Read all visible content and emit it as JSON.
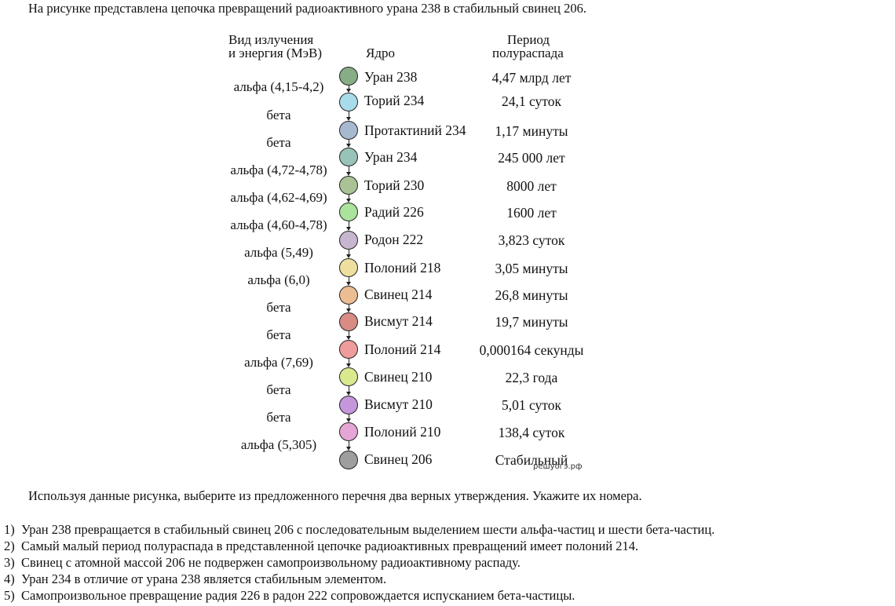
{
  "intro": "На рисунке представлена цепочка превращений радиоактивного урана 238 в стабильный свинец 206.",
  "headers": {
    "radiation_line1": "Вид излучения",
    "radiation_line2": "и энергия (МэВ)",
    "nucleus": "Ядро",
    "halflife_line1": "Период",
    "halflife_line2": "полураспада"
  },
  "decays": [
    "альфа (4,15-4,2)",
    "бета",
    "бета",
    "альфа (4,72-4,78)",
    "альфа (4,62-4,69)",
    "альфа (4,60-4,78)",
    "альфа (5,49)",
    "альфа (6,0)",
    "бета",
    "бета",
    "альфа (7,69)",
    "бета",
    "бета",
    "альфа (5,305)"
  ],
  "nuclides": [
    {
      "name": "Уран 238",
      "halflife": "4,47 млрд лет",
      "color": "#86ad86"
    },
    {
      "name": "Торий 234",
      "halflife": "24,1 суток",
      "color": "#a9dcea"
    },
    {
      "name": "Протактиний 234",
      "halflife": "1,17 минуты",
      "color": "#a7b9cf"
    },
    {
      "name": "Уран 234",
      "halflife": "245 000 лет",
      "color": "#98c3b8"
    },
    {
      "name": "Торий 230",
      "halflife": "8000 лет",
      "color": "#a9c395"
    },
    {
      "name": "Радий 226",
      "halflife": "1600 лет",
      "color": "#abe39d"
    },
    {
      "name": "Родон 222",
      "halflife": "3,823 суток",
      "color": "#c7b6cf"
    },
    {
      "name": "Полоний 218",
      "halflife": "3,05 минуты",
      "color": "#ecdf9f"
    },
    {
      "name": "Свинец 214",
      "halflife": "26,8 минуты",
      "color": "#ecbd92"
    },
    {
      "name": "Висмут 214",
      "halflife": "19,7 минуты",
      "color": "#d88c84"
    },
    {
      "name": "Полоний 214",
      "halflife": "0,000164 секунды",
      "color": "#ef9c9c"
    },
    {
      "name": "Свинец 210",
      "halflife": "22,3 года",
      "color": "#d9e98e"
    },
    {
      "name": "Висмут 210",
      "halflife": "5,01 суток",
      "color": "#c596dc"
    },
    {
      "name": "Полоний 210",
      "halflife": "138,4 суток",
      "color": "#e5a6d5"
    },
    {
      "name": "Свинец 206",
      "halflife": "Стабильный",
      "color": "#9e9e9e"
    }
  ],
  "watermark": "решуогэ.рф",
  "question": "Используя данные рисунка, выберите из предложенного перечня два верных утверждения. Укажите их номера.",
  "options": [
    {
      "num": "1)",
      "text": "Уран 238 превращается в стабильный свинец 206 с последовательным выделением шести альфа-частиц и шести бета-частиц."
    },
    {
      "num": "2)",
      "text": "Самый малый период полураспада в представленной цепочке радиоактивных превращений имеет полоний 214."
    },
    {
      "num": "3)",
      "text": "Свинец с атомной массой 206 не подвержен самопроизвольному радиоактивному распаду."
    },
    {
      "num": "4)",
      "text": "Уран 234 в отличие от урана 238 является стабильным элементом."
    },
    {
      "num": "5)",
      "text": "Самопроизвольное превращение радия 226 в радон 222 сопровождается испусканием бета-частицы."
    }
  ]
}
